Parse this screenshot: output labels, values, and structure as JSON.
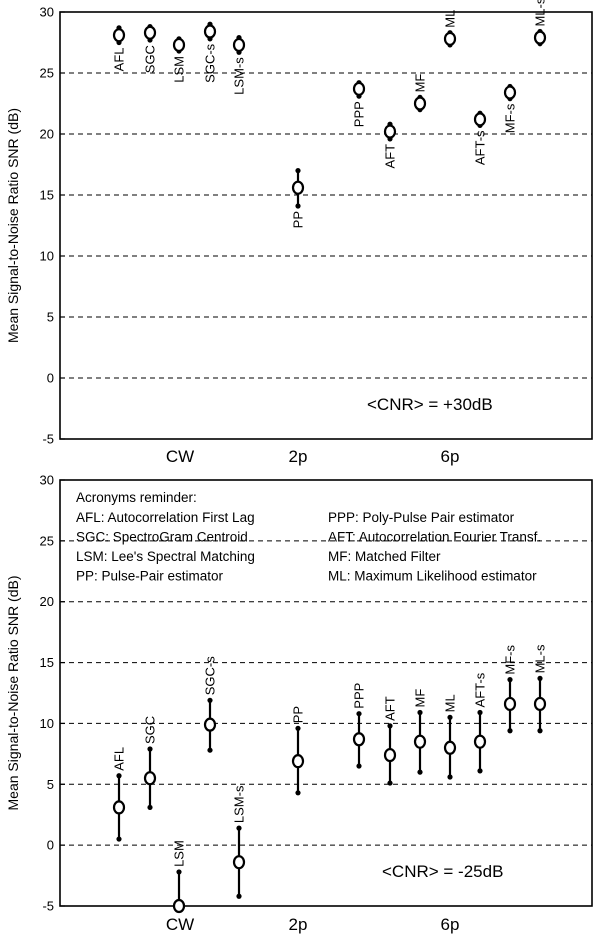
{
  "chart_data": [
    {
      "type": "scatter",
      "ylabel": "Mean Signal-to-Noise Ratio SNR (dB)",
      "ylim": [
        -5,
        30
      ],
      "yticks": [
        30,
        25,
        20,
        15,
        10,
        5,
        0,
        -5
      ],
      "grid": "dashed horizontal at 5, 10, 15, 20, 25",
      "groups": [
        "CW",
        "2p",
        "6p"
      ],
      "annotation": "<CNR> = +30dB",
      "points": [
        {
          "name": "AFL",
          "x": 1,
          "mean": 28.1,
          "low": 27.5,
          "high": 28.7
        },
        {
          "name": "SGC",
          "x": 2,
          "mean": 28.3,
          "low": 27.7,
          "high": 28.8
        },
        {
          "name": "LSM",
          "x": 3,
          "mean": 27.3,
          "low": 26.8,
          "high": 27.8
        },
        {
          "name": "SGC-s",
          "x": 4,
          "mean": 28.4,
          "low": 27.8,
          "high": 29.0
        },
        {
          "name": "LSM-s",
          "x": 5,
          "mean": 27.3,
          "low": 26.7,
          "high": 27.9
        },
        {
          "name": "PP",
          "x": 6.5,
          "mean": 15.6,
          "low": 14.1,
          "high": 17.0
        },
        {
          "name": "PPP",
          "x": 8,
          "mean": 23.7,
          "low": 23.1,
          "high": 24.2
        },
        {
          "name": "AFT",
          "x": 9,
          "mean": 20.2,
          "low": 19.6,
          "high": 20.8
        },
        {
          "name": "MF",
          "x": 10,
          "mean": 22.5,
          "low": 22.0,
          "high": 23.0
        },
        {
          "name": "ML",
          "x": 11,
          "mean": 27.8,
          "low": 27.3,
          "high": 28.3
        },
        {
          "name": "AFT-s",
          "x": 12,
          "mean": 21.2,
          "low": 20.7,
          "high": 21.7
        },
        {
          "name": "MF-s",
          "x": 13,
          "mean": 23.4,
          "low": 22.9,
          "high": 23.9
        },
        {
          "name": "ML-s",
          "x": 14,
          "mean": 27.9,
          "low": 27.4,
          "high": 28.4
        }
      ]
    },
    {
      "type": "scatter",
      "ylabel": "Mean Signal-to-Noise Ratio SNR (dB)",
      "ylim": [
        -5,
        30
      ],
      "yticks": [
        30,
        25,
        20,
        15,
        10,
        5,
        0,
        -5
      ],
      "grid": "dashed horizontal at 0, 5, 10, 15, 20",
      "groups": [
        "CW",
        "2p",
        "6p"
      ],
      "annotation": "<CNR> = -25dB",
      "legend_title": "Acronyms reminder:",
      "legend_left": [
        "AFL: Autocorrelation First Lag",
        "SGC: SpectroGram Centroid",
        "LSM: Lee's Spectral Matching",
        "PP: Pulse-Pair estimator"
      ],
      "legend_right": [
        "PPP: Poly-Pulse Pair estimator",
        "AFT: Autocorrelation Fourier Transf.",
        "MF: Matched Filter",
        "ML: Maximum Likelihood estimator"
      ],
      "points": [
        {
          "name": "AFL",
          "x": 1,
          "mean": 3.1,
          "low": 0.5,
          "high": 5.7
        },
        {
          "name": "SGC",
          "x": 2,
          "mean": 5.5,
          "low": 3.1,
          "high": 7.9
        },
        {
          "name": "LSM",
          "x": 3,
          "mean": -5.0,
          "low": -5.0,
          "high": -2.2
        },
        {
          "name": "SGC-s",
          "x": 4,
          "mean": 9.9,
          "low": 7.8,
          "high": 11.9
        },
        {
          "name": "LSM-s",
          "x": 5,
          "mean": -1.4,
          "low": -4.2,
          "high": 1.4
        },
        {
          "name": "PP",
          "x": 6.5,
          "mean": 6.9,
          "low": 4.3,
          "high": 9.6
        },
        {
          "name": "PPP",
          "x": 8,
          "mean": 8.7,
          "low": 6.5,
          "high": 10.8
        },
        {
          "name": "AFT",
          "x": 9,
          "mean": 7.4,
          "low": 5.1,
          "high": 9.8
        },
        {
          "name": "MF",
          "x": 10,
          "mean": 8.5,
          "low": 6.0,
          "high": 10.9
        },
        {
          "name": "ML",
          "x": 11,
          "mean": 8.0,
          "low": 5.6,
          "high": 10.5
        },
        {
          "name": "AFT-s",
          "x": 12,
          "mean": 8.5,
          "low": 6.1,
          "high": 10.9
        },
        {
          "name": "MF-s",
          "x": 13,
          "mean": 11.6,
          "low": 9.4,
          "high": 13.6
        },
        {
          "name": "ML-s",
          "x": 14,
          "mean": 11.6,
          "low": 9.4,
          "high": 13.7
        }
      ]
    }
  ]
}
